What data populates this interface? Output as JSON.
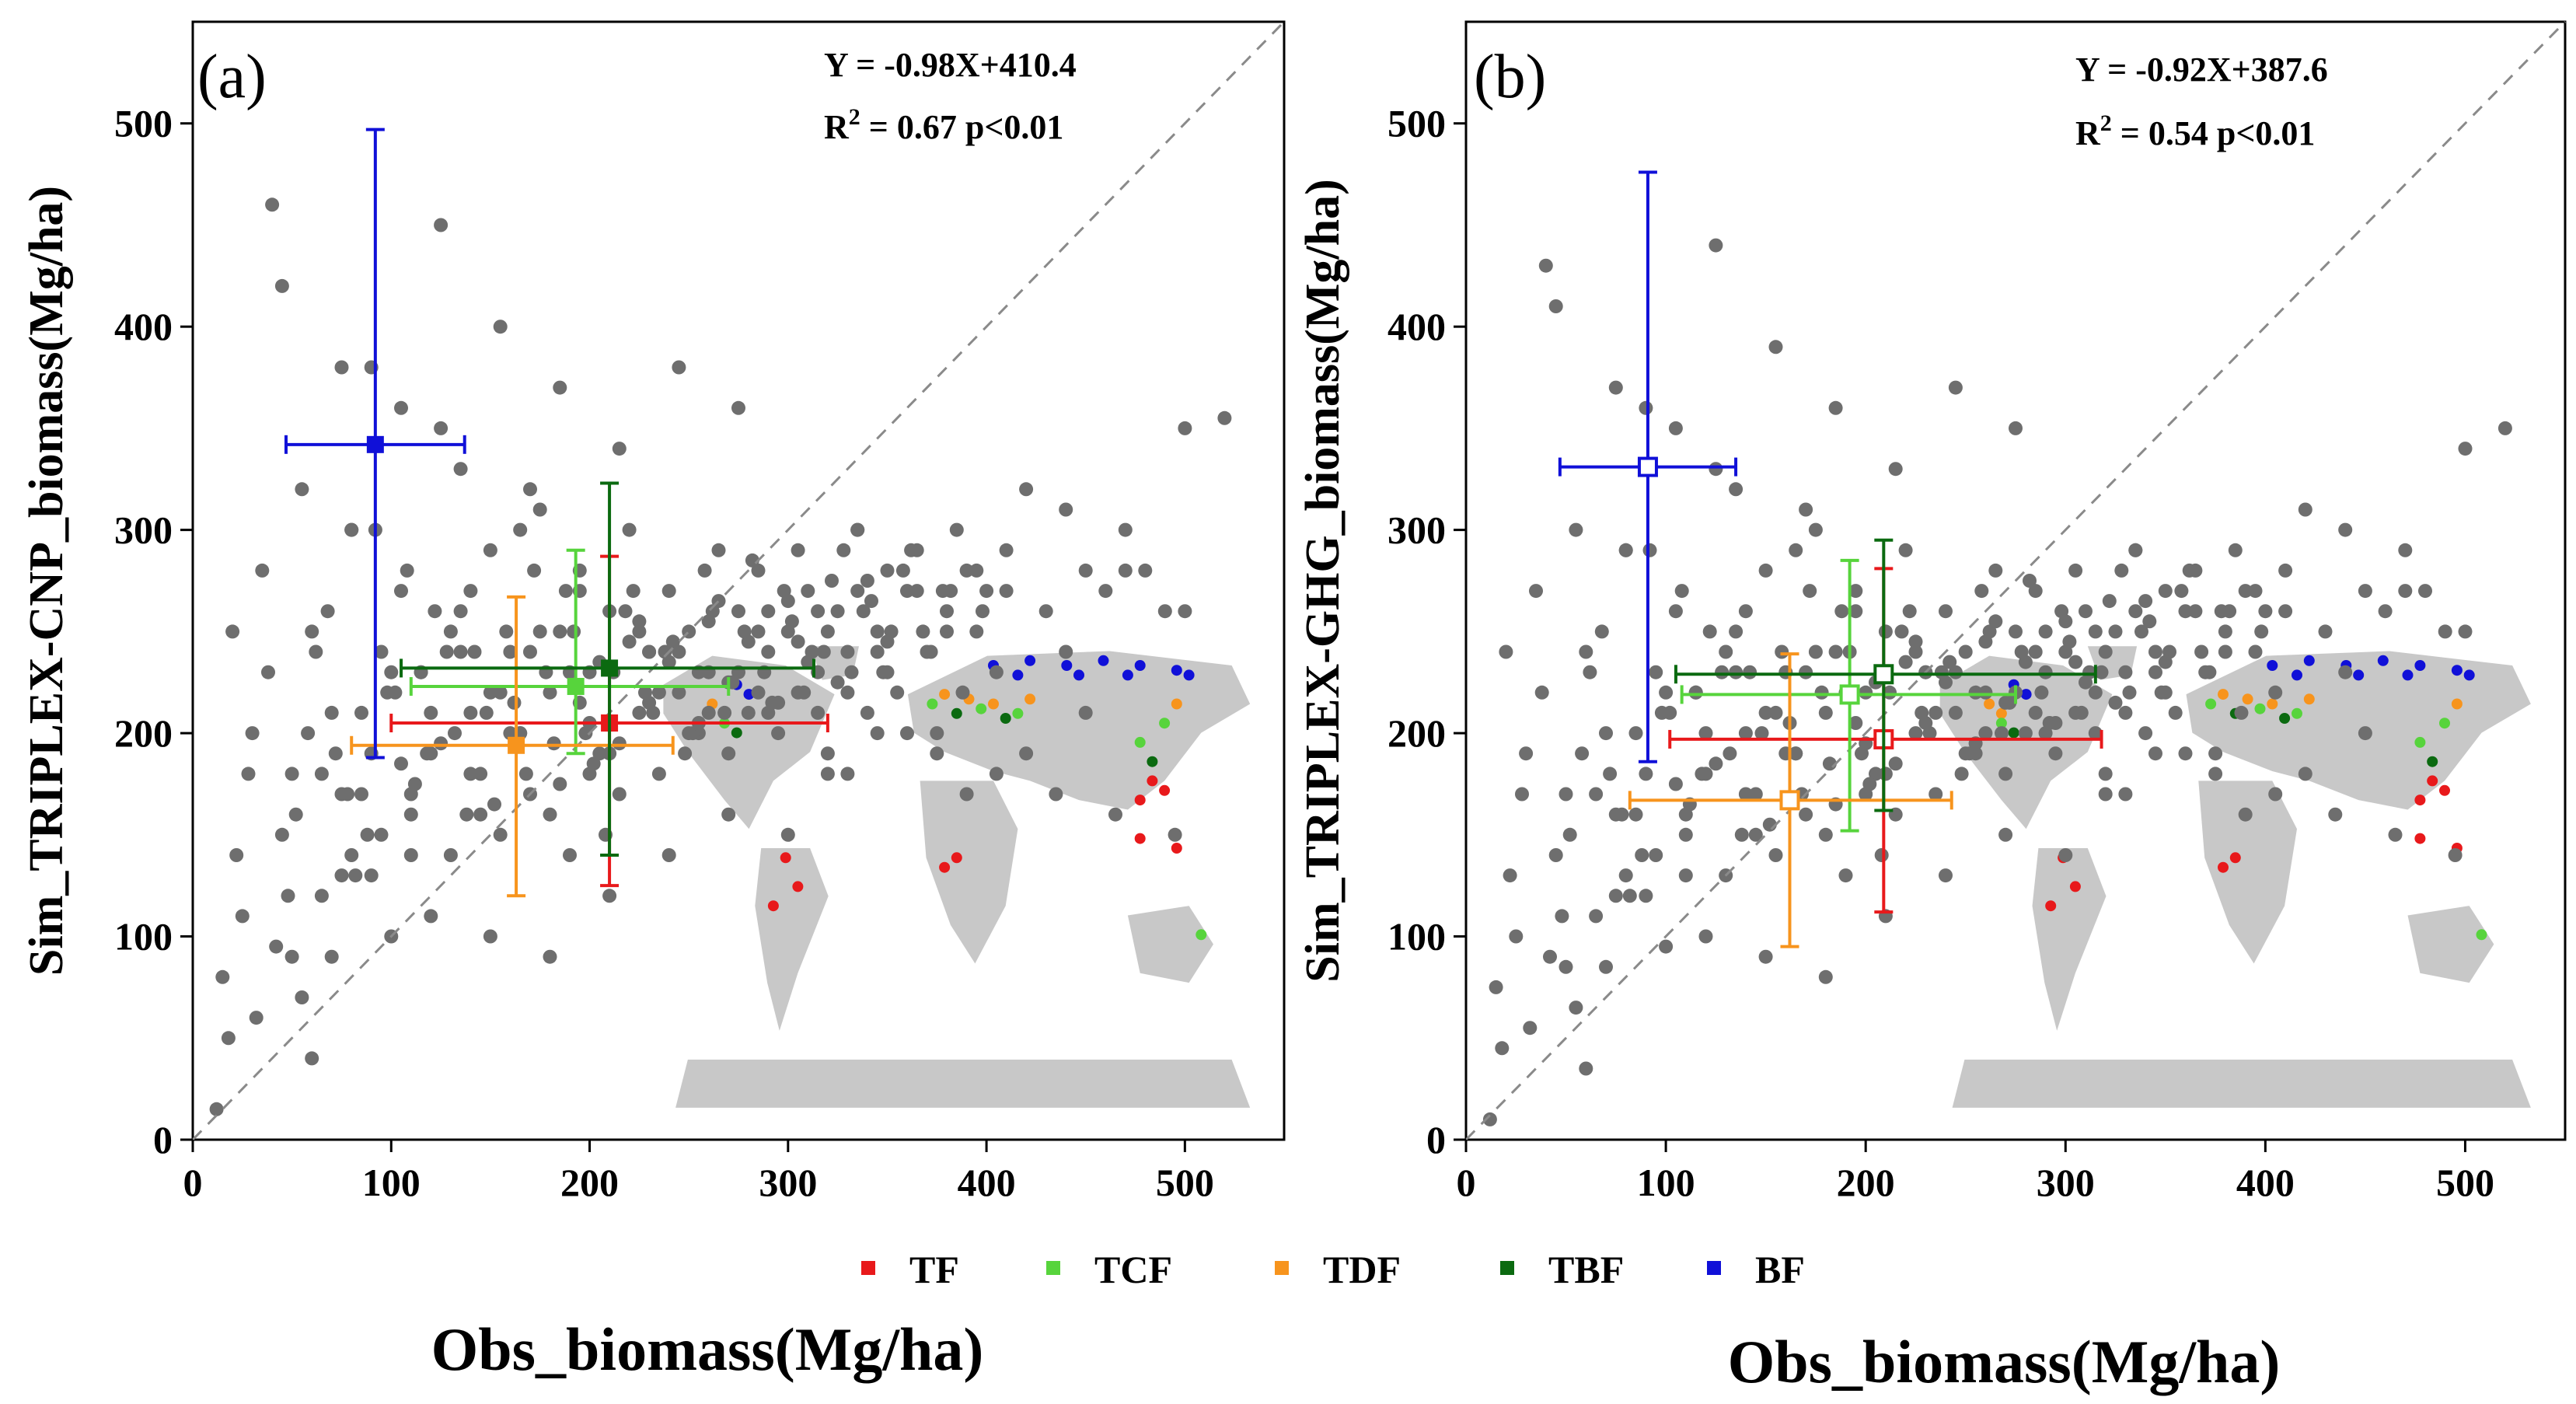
{
  "chart_data": [
    {
      "type": "scatter",
      "panel_label": "(a)",
      "xlabel": "Obs_biomass(Mg/ha)",
      "ylabel": "Sim_TRIPLEX-CNP_biomass(Mg/ha)",
      "xlim": [
        0,
        550
      ],
      "ylim": [
        0,
        550
      ],
      "xticks": [
        "0",
        "100",
        "200",
        "300",
        "400",
        "500"
      ],
      "yticks": [
        "0",
        "100",
        "200",
        "300",
        "400",
        "500"
      ],
      "equation": "Y = -0.98X+410.4",
      "r2_label": "R",
      "r2_sup": "2",
      "r2_text": " = 0.67  p<0.01",
      "one_to_one_line": true,
      "point_color": "#6e6e6e",
      "points_x": [
        12,
        18,
        25,
        30,
        35,
        40,
        45,
        50,
        55,
        60,
        65,
        70,
        75,
        80,
        85,
        90,
        95,
        100,
        105,
        110,
        115,
        120,
        125,
        130,
        135,
        140,
        145,
        150,
        155,
        160,
        165,
        170,
        175,
        180,
        185,
        190,
        195,
        200,
        205,
        210,
        215,
        220,
        225,
        230,
        235,
        240,
        245,
        250,
        255,
        260,
        265,
        270,
        275,
        280,
        285,
        290,
        295,
        300,
        305,
        310,
        315,
        320,
        325,
        330,
        335,
        340,
        345,
        350,
        355,
        360,
        365,
        370,
        375,
        380,
        385,
        390,
        395,
        400,
        405,
        410,
        420,
        430,
        440,
        450,
        460,
        470,
        480,
        490,
        500,
        520,
        15,
        22,
        28,
        38,
        48,
        58,
        68,
        78,
        88,
        98,
        108,
        118,
        128,
        138,
        148,
        158,
        168,
        178,
        188,
        198,
        208,
        218,
        228,
        238,
        248,
        258,
        268,
        278,
        288,
        298,
        308,
        318,
        328,
        338,
        348,
        358,
        368,
        378,
        388,
        398,
        32,
        42,
        52,
        62,
        72,
        82,
        92,
        102,
        112,
        122,
        132,
        142,
        152,
        162,
        172,
        182,
        192,
        202,
        212,
        222,
        232,
        242,
        252,
        262,
        272,
        282,
        292,
        302,
        312,
        322,
        332,
        342,
        352,
        362,
        372,
        382,
        55,
        65,
        75,
        85,
        95,
        105,
        115,
        125,
        135,
        145,
        155,
        165,
        175,
        185,
        195,
        205,
        215,
        225,
        235,
        245,
        255,
        265,
        275,
        285,
        295,
        305,
        315,
        325,
        335,
        345,
        60,
        70,
        80,
        90,
        100,
        110,
        120,
        130,
        140,
        150,
        160,
        170,
        180,
        190,
        200,
        210,
        220,
        230,
        240,
        250,
        260,
        270,
        280,
        290,
        300,
        310,
        320,
        330,
        340,
        350,
        45,
        75,
        105,
        135,
        165,
        195,
        225,
        255,
        285,
        315,
        345,
        375,
        405,
        435,
        465,
        495,
        20,
        50,
        80,
        110,
        140,
        170,
        200,
        230,
        260,
        290,
        320,
        350,
        380,
        410,
        440,
        470,
        500,
        125,
        155,
        185,
        215,
        245,
        275,
        305,
        335,
        365,
        395,
        90,
        120,
        150,
        180,
        210,
        240,
        270,
        300,
        330,
        360,
        390,
        420,
        450
      ],
      "points_y": [
        15,
        50,
        110,
        200,
        280,
        460,
        150,
        90,
        320,
        250,
        180,
        210,
        130,
        300,
        170,
        380,
        240,
        100,
        270,
        160,
        230,
        190,
        350,
        140,
        260,
        210,
        180,
        290,
        150,
        240,
        200,
        170,
        310,
        220,
        250,
        140,
        280,
        230,
        190,
        260,
        170,
        300,
        210,
        240,
        180,
        270,
        220,
        250,
        200,
        230,
        290,
        190,
        260,
        210,
        280,
        240,
        200,
        250,
        220,
        270,
        230,
        180,
        260,
        240,
        300,
        210,
        250,
        280,
        220,
        270,
        290,
        240,
        200,
        260,
        300,
        280,
        250,
        270,
        230,
        290,
        320,
        260,
        310,
        280,
        270,
        300,
        280,
        260,
        350,
        355,
        80,
        140,
        180,
        230,
        120,
        200,
        260,
        170,
        150,
        220,
        280,
        190,
        240,
        160,
        210,
        250,
        180,
        230,
        270,
        200,
        150,
        260,
        220,
        240,
        190,
        280,
        210,
        250,
        230,
        270,
        220,
        240,
        290,
        260,
        230,
        280,
        250,
        270,
        220,
        260,
        60,
        95,
        160,
        240,
        190,
        130,
        300,
        220,
        175,
        260,
        200,
        240,
        165,
        215,
        280,
        195,
        250,
        185,
        230,
        270,
        210,
        245,
        200,
        260,
        225,
        285,
        215,
        255,
        240,
        275,
        230,
        265,
        250,
        290,
        240,
        270,
        70,
        120,
        170,
        210,
        150,
        185,
        230,
        195,
        240,
        160,
        220,
        200,
        250,
        175,
        215,
        235,
        195,
        255,
        220,
        240,
        205,
        265,
        230,
        250,
        215,
        245,
        260,
        225,
        270,
        240,
        40,
        90,
        140,
        190,
        230,
        170,
        210,
        250,
        180,
        220,
        200,
        240,
        160,
        230,
        205,
        190,
        245,
        215,
        235,
        200,
        255,
        225,
        245,
        210,
        265,
        235,
        250,
        220,
        275,
        245,
        420,
        380,
        360,
        330,
        300,
        270,
        250,
        230,
        220,
        210,
        200,
        190,
        180,
        170,
        160,
        150,
        250,
        180,
        300,
        140,
        270,
        320,
        180,
        240,
        210,
        260,
        190,
        230,
        250,
        270,
        240,
        280,
        260,
        450,
        400,
        370,
        340,
        380,
        360,
        290,
        300,
        270,
        280,
        130,
        110,
        100,
        90,
        120,
        140,
        160,
        150,
        180,
        200,
        170,
        190,
        210
      ],
      "error_bars": [
        {
          "name": "TF",
          "color": "#e8191b",
          "x": 210,
          "y": 205,
          "xlo": 100,
          "xhi": 320,
          "ylo": 125,
          "yhi": 287
        },
        {
          "name": "TCF",
          "color": "#57d43c",
          "x": 193,
          "y": 223,
          "xlo": 110,
          "xhi": 270,
          "ylo": 190,
          "yhi": 290
        },
        {
          "name": "TDF",
          "color": "#f7941d",
          "x": 163,
          "y": 194,
          "xlo": 80,
          "xhi": 242,
          "ylo": 120,
          "yhi": 267
        },
        {
          "name": "TBF",
          "color": "#0b6a10",
          "x": 210,
          "y": 232,
          "xlo": 105,
          "xhi": 313,
          "ylo": 140,
          "yhi": 323
        },
        {
          "name": "BF",
          "color": "#1010d8",
          "x": 92,
          "y": 342,
          "xlo": 47,
          "xhi": 137,
          "ylo": 188,
          "yhi": 497
        }
      ]
    },
    {
      "type": "scatter",
      "panel_label": "(b)",
      "xlabel": "Obs_biomass(Mg/ha)",
      "ylabel": "Sim_TRIPLEX-GHG_biomass(Mg/ha)",
      "xlim": [
        0,
        550
      ],
      "ylim": [
        0,
        550
      ],
      "xticks": [
        "0",
        "100",
        "200",
        "300",
        "400",
        "500"
      ],
      "yticks": [
        "0",
        "100",
        "200",
        "300",
        "400",
        "500"
      ],
      "equation": "Y = -0.92X+387.6",
      "r2_label": "R",
      "r2_sup": "2",
      "r2_text": " = 0.54   p<0.01",
      "one_to_one_line": true,
      "point_color": "#6e6e6e",
      "points_x": [
        12,
        18,
        25,
        30,
        35,
        40,
        45,
        50,
        55,
        60,
        65,
        70,
        75,
        80,
        85,
        90,
        95,
        100,
        105,
        110,
        115,
        120,
        125,
        130,
        135,
        140,
        145,
        150,
        155,
        160,
        165,
        170,
        175,
        180,
        185,
        190,
        195,
        200,
        205,
        210,
        215,
        220,
        225,
        230,
        235,
        240,
        245,
        250,
        255,
        260,
        265,
        270,
        275,
        280,
        285,
        290,
        295,
        300,
        305,
        310,
        315,
        320,
        325,
        330,
        335,
        340,
        345,
        350,
        355,
        360,
        365,
        370,
        375,
        380,
        385,
        390,
        395,
        400,
        405,
        410,
        420,
        430,
        440,
        450,
        460,
        470,
        480,
        490,
        500,
        520,
        15,
        22,
        28,
        38,
        48,
        58,
        68,
        78,
        88,
        98,
        108,
        118,
        128,
        138,
        148,
        158,
        168,
        178,
        188,
        198,
        208,
        218,
        228,
        238,
        248,
        258,
        268,
        278,
        288,
        298,
        308,
        318,
        328,
        338,
        348,
        358,
        368,
        378,
        388,
        398,
        32,
        42,
        52,
        62,
        72,
        82,
        92,
        102,
        112,
        122,
        132,
        142,
        152,
        162,
        172,
        182,
        192,
        202,
        212,
        222,
        232,
        242,
        252,
        262,
        272,
        282,
        292,
        302,
        312,
        322,
        332,
        342,
        352,
        362,
        372,
        382,
        55,
        65,
        75,
        85,
        95,
        105,
        115,
        125,
        135,
        145,
        155,
        165,
        175,
        185,
        195,
        205,
        215,
        225,
        235,
        245,
        255,
        265,
        275,
        285,
        295,
        305,
        315,
        325,
        335,
        345,
        60,
        70,
        80,
        90,
        100,
        110,
        120,
        130,
        140,
        150,
        160,
        170,
        180,
        190,
        200,
        210,
        220,
        230,
        240,
        250,
        260,
        270,
        280,
        290,
        300,
        310,
        320,
        330,
        340,
        350,
        45,
        75,
        105,
        135,
        165,
        195,
        225,
        255,
        285,
        315,
        345,
        375,
        405,
        435,
        465,
        495,
        20,
        50,
        80,
        110,
        140,
        170,
        200,
        230,
        260,
        290,
        320,
        350,
        380,
        410,
        440,
        470,
        500,
        125,
        155,
        185,
        215,
        245,
        275,
        305,
        335,
        365,
        395,
        90,
        120,
        150,
        180,
        210,
        240,
        270,
        300,
        330,
        360,
        390,
        420,
        450
      ],
      "points_y": [
        10,
        45,
        100,
        190,
        270,
        430,
        140,
        85,
        300,
        240,
        170,
        200,
        120,
        290,
        160,
        360,
        230,
        95,
        260,
        150,
        220,
        180,
        330,
        130,
        250,
        200,
        170,
        280,
        140,
        230,
        190,
        160,
        300,
        210,
        240,
        130,
        270,
        220,
        180,
        250,
        160,
        290,
        200,
        230,
        170,
        260,
        210,
        240,
        190,
        220,
        280,
        180,
        250,
        200,
        270,
        230,
        190,
        240,
        210,
        260,
        220,
        170,
        250,
        230,
        290,
        200,
        240,
        270,
        210,
        260,
        280,
        230,
        190,
        250,
        290,
        270,
        240,
        260,
        220,
        280,
        310,
        250,
        300,
        270,
        260,
        290,
        270,
        250,
        340,
        350,
        75,
        130,
        170,
        220,
        110,
        190,
        250,
        160,
        140,
        210,
        270,
        180,
        230,
        150,
        200,
        240,
        170,
        220,
        260,
        190,
        140,
        250,
        210,
        230,
        180,
        270,
        200,
        240,
        220,
        260,
        210,
        230,
        280,
        250,
        220,
        270,
        240,
        260,
        210,
        250,
        55,
        90,
        150,
        230,
        180,
        120,
        290,
        210,
        165,
        250,
        190,
        230,
        155,
        205,
        270,
        185,
        240,
        175,
        220,
        260,
        200,
        235,
        190,
        250,
        215,
        275,
        205,
        245,
        230,
        265,
        220,
        255,
        240,
        280,
        230,
        260,
        65,
        110,
        160,
        200,
        140,
        175,
        220,
        185,
        230,
        150,
        210,
        190,
        240,
        165,
        205,
        225,
        185,
        245,
        210,
        230,
        195,
        255,
        220,
        240,
        205,
        235,
        250,
        215,
        260,
        230,
        35,
        85,
        130,
        180,
        220,
        160,
        200,
        240,
        170,
        210,
        190,
        230,
        150,
        220,
        195,
        180,
        235,
        205,
        225,
        190,
        245,
        215,
        235,
        200,
        255,
        225,
        240,
        210,
        265,
        235,
        410,
        370,
        350,
        320,
        290,
        260,
        240,
        220,
        210,
        200,
        190,
        180,
        170,
        160,
        150,
        140,
        240,
        170,
        290,
        130,
        260,
        310,
        170,
        230,
        200,
        250,
        180,
        220,
        240,
        260,
        230,
        270,
        250,
        440,
        390,
        360,
        330,
        370,
        350,
        280,
        290,
        260,
        270,
        120,
        100,
        90,
        80,
        110,
        130,
        150,
        140,
        170,
        190,
        160,
        180,
        200
      ],
      "error_bars": [
        {
          "name": "TF",
          "color": "#e8191b",
          "x": 209,
          "y": 197,
          "xlo": 102,
          "xhi": 318,
          "ylo": 112,
          "yhi": 281
        },
        {
          "name": "TCF",
          "color": "#57d43c",
          "x": 192,
          "y": 219,
          "xlo": 108,
          "xhi": 275,
          "ylo": 152,
          "yhi": 285
        },
        {
          "name": "TDF",
          "color": "#f7941d",
          "x": 162,
          "y": 167,
          "xlo": 82,
          "xhi": 243,
          "ylo": 95,
          "yhi": 239
        },
        {
          "name": "TBF",
          "color": "#0b6a10",
          "x": 209,
          "y": 229,
          "xlo": 105,
          "xhi": 315,
          "ylo": 162,
          "yhi": 295
        },
        {
          "name": "BF",
          "color": "#1010d8",
          "x": 91,
          "y": 331,
          "xlo": 47,
          "xhi": 135,
          "ylo": 186,
          "yhi": 476
        }
      ]
    }
  ],
  "legend": [
    {
      "label": "TF",
      "color": "#e8191b"
    },
    {
      "label": "TCF",
      "color": "#57d43c"
    },
    {
      "label": "TDF",
      "color": "#f7941d"
    },
    {
      "label": "TBF",
      "color": "#0b6a10"
    },
    {
      "label": "BF",
      "color": "#1010d8"
    }
  ],
  "map_land_color": "#c8c8c8"
}
